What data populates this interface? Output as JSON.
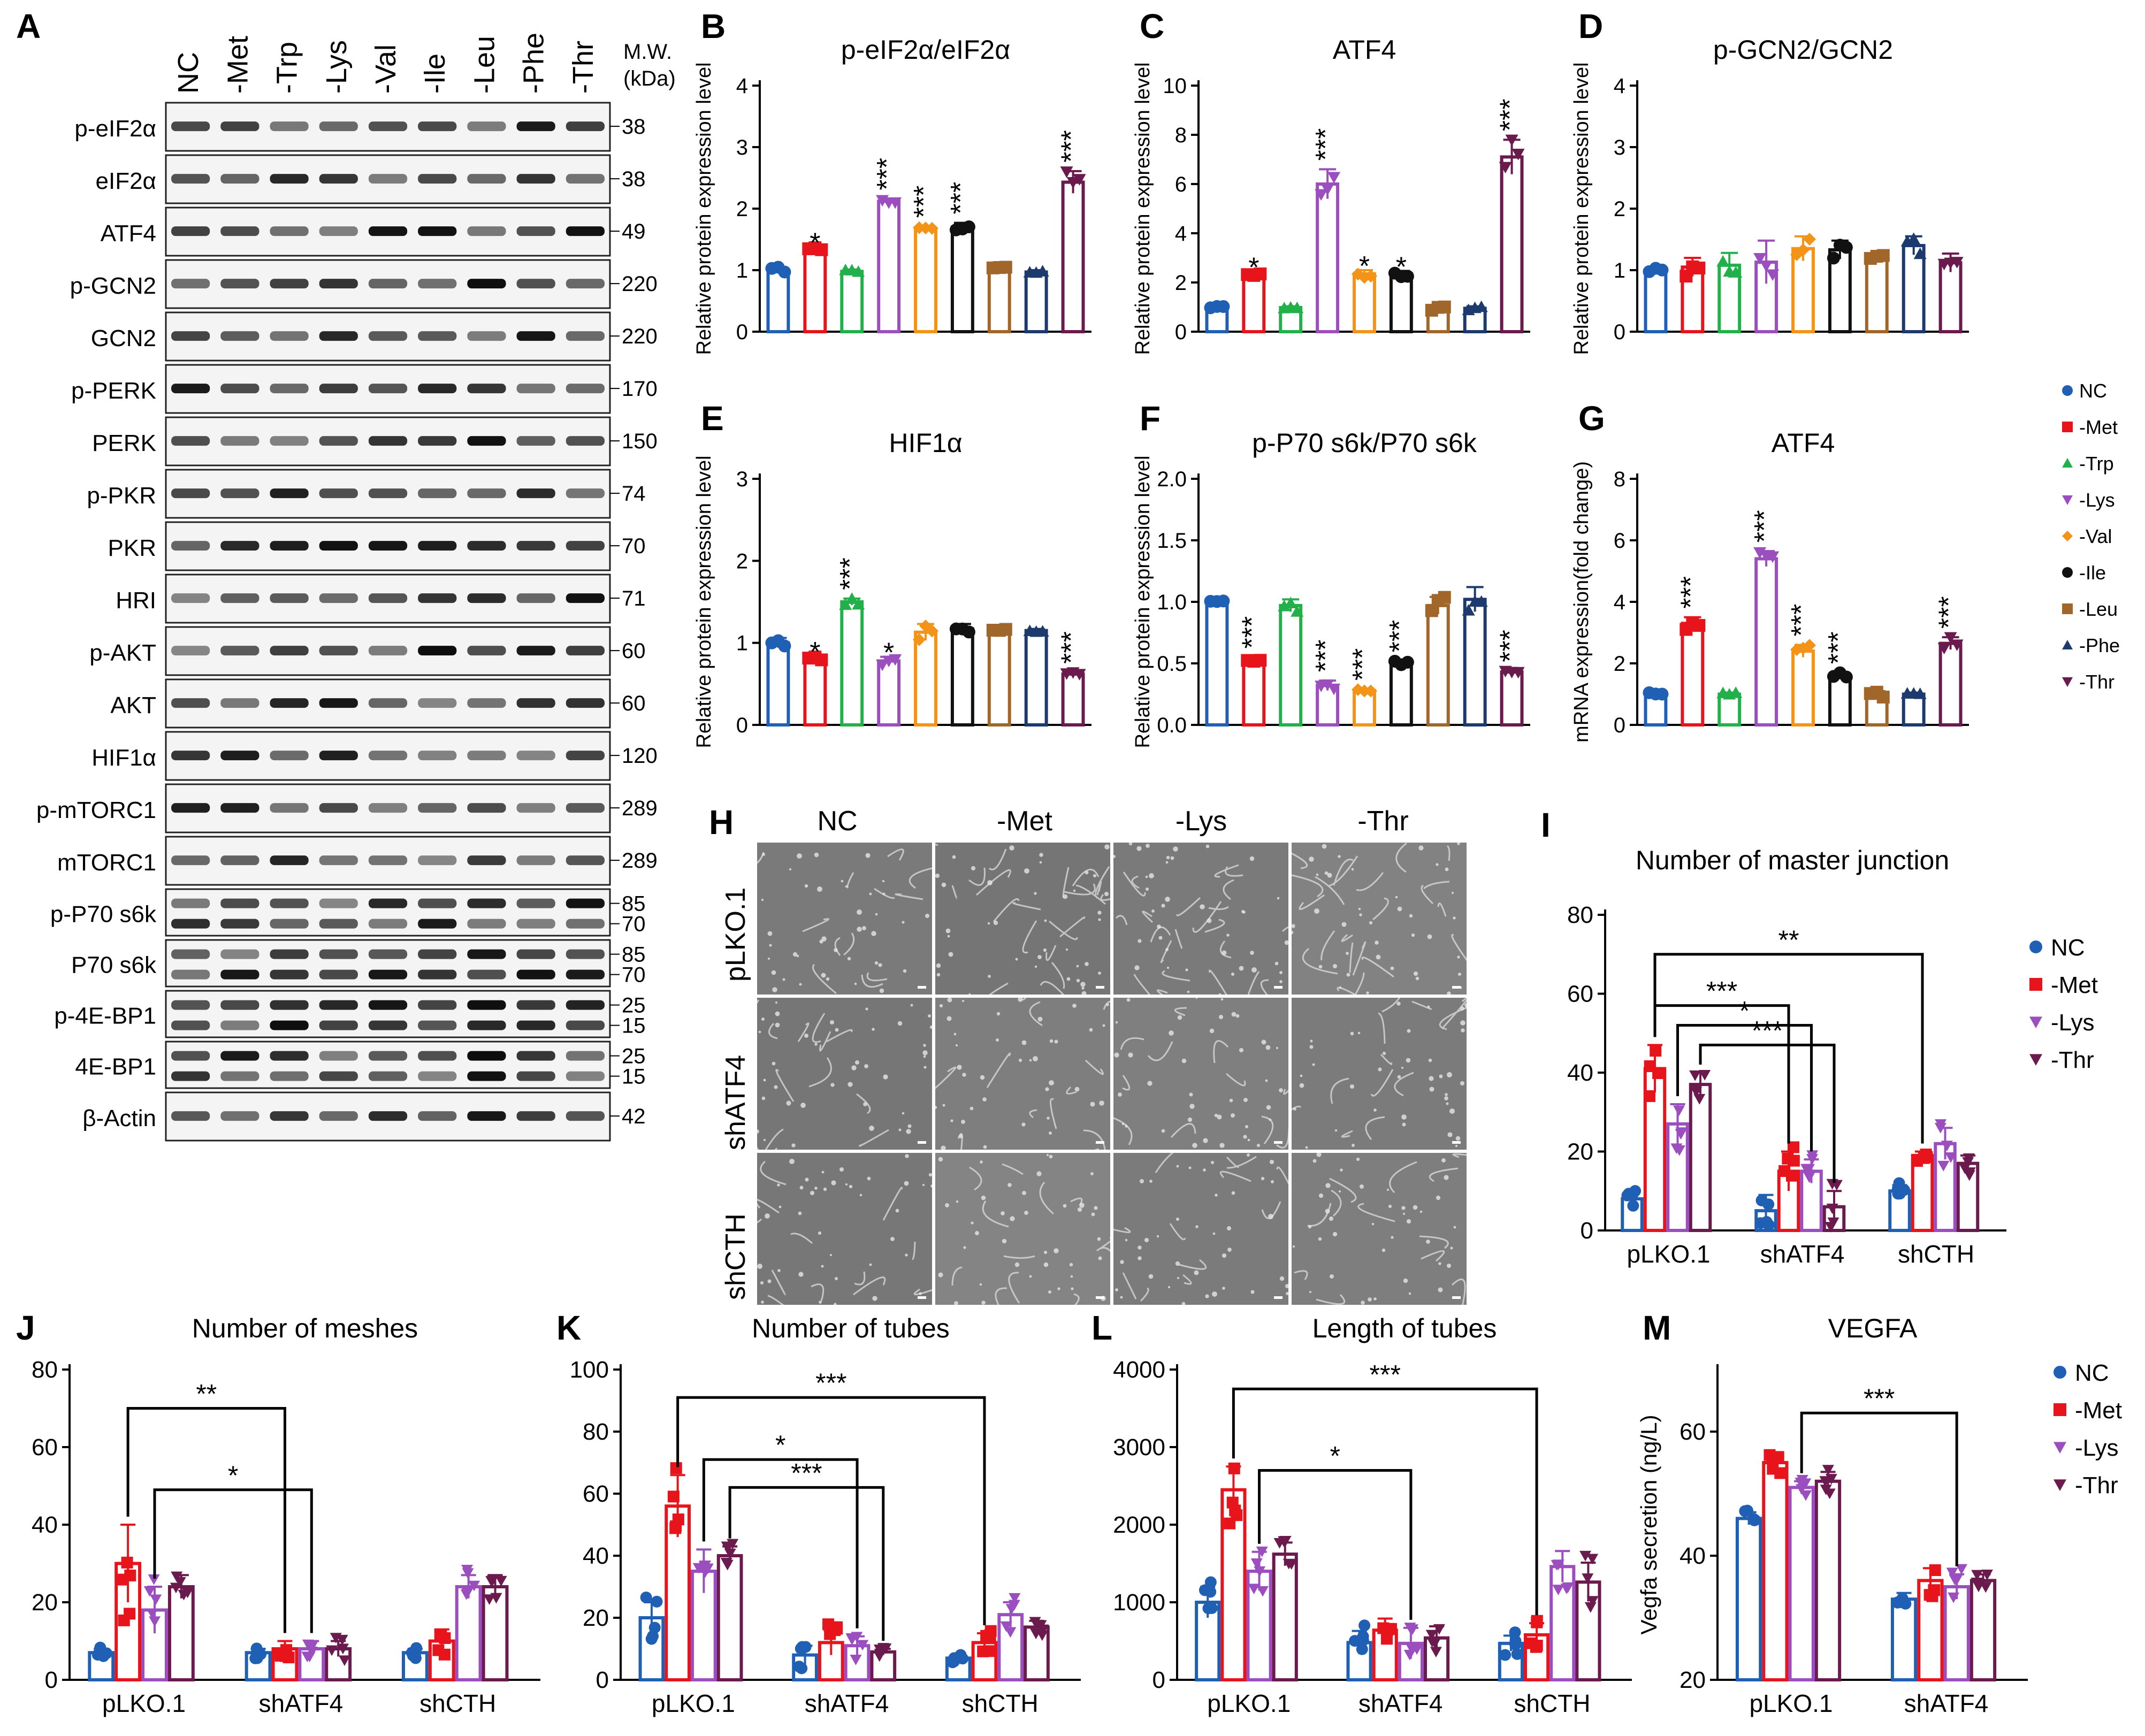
{
  "panels": {
    "A": "A",
    "B": "B",
    "C": "C",
    "D": "D",
    "E": "E",
    "F": "F",
    "G": "G",
    "H": "H",
    "I": "I",
    "J": "J",
    "K": "K",
    "L": "L",
    "M": "M"
  },
  "western_blot": {
    "lanes": [
      "NC",
      "-Met",
      "-Trp",
      "-Lys",
      "-Val",
      "-Ile",
      "-Leu",
      "-Phe",
      "-Thr"
    ],
    "mw_header": [
      "M.W.",
      "(kDa)"
    ],
    "rows": [
      {
        "label": "p-eIF2α",
        "mw": [
          "38"
        ]
      },
      {
        "label": "eIF2α",
        "mw": [
          "38"
        ]
      },
      {
        "label": "ATF4",
        "mw": [
          "49"
        ]
      },
      {
        "label": "p-GCN2",
        "mw": [
          "220"
        ]
      },
      {
        "label": "GCN2",
        "mw": [
          "220"
        ]
      },
      {
        "label": "p-PERK",
        "mw": [
          "170"
        ]
      },
      {
        "label": "PERK",
        "mw": [
          "150"
        ]
      },
      {
        "label": "p-PKR",
        "mw": [
          "74"
        ]
      },
      {
        "label": "PKR",
        "mw": [
          "70"
        ]
      },
      {
        "label": "HRI",
        "mw": [
          "71"
        ]
      },
      {
        "label": "p-AKT",
        "mw": [
          "60"
        ]
      },
      {
        "label": "AKT",
        "mw": [
          "60"
        ]
      },
      {
        "label": "HIF1α",
        "mw": [
          "120"
        ]
      },
      {
        "label": "p-mTORC1",
        "mw": [
          "289"
        ]
      },
      {
        "label": "mTORC1",
        "mw": [
          "289"
        ]
      },
      {
        "label": "p-P70 s6k",
        "mw": [
          "85",
          "70"
        ]
      },
      {
        "label": "P70 s6k",
        "mw": [
          "85",
          "70"
        ]
      },
      {
        "label": "p-4E-BP1",
        "mw": [
          "25",
          "15"
        ]
      },
      {
        "label": "4E-BP1",
        "mw": [
          "25",
          "15"
        ]
      },
      {
        "label": "β-Actin",
        "mw": [
          "42"
        ]
      }
    ]
  },
  "legend_aa": [
    "NC",
    "-Met",
    "-Trp",
    "-Lys",
    "-Val",
    "-Ile",
    "-Leu",
    "-Phe",
    "-Thr"
  ],
  "legend_tube": [
    "NC",
    "-Met",
    "-Lys",
    "-Thr"
  ],
  "colors": {
    "NC": "#1f5fb4",
    "-Met": "#e8141c",
    "-Trp": "#22b04a",
    "-Lys": "#9b4fbf",
    "-Val": "#f39317",
    "-Ile": "#111111",
    "-Leu": "#a0662a",
    "-Phe": "#1d3a6e",
    "-Thr": "#6a1a4c"
  },
  "microscopy": {
    "columns": [
      "NC",
      "-Met",
      "-Lys",
      "-Thr"
    ],
    "rows": [
      "pLKO.1",
      "shATF4",
      "shCTH"
    ]
  },
  "chart_data": [
    {
      "id": "B",
      "type": "bar",
      "title": "p-eIF2α/eIF2α",
      "ylabel": "Relative protein expression level",
      "ylim": [
        0,
        4
      ],
      "yticks": [
        0,
        1,
        2,
        3,
        4
      ],
      "categories": [
        "NC",
        "-Met",
        "-Trp",
        "-Lys",
        "-Val",
        "-Ile",
        "-Leu",
        "-Phe",
        "-Thr"
      ],
      "values": [
        1.0,
        1.33,
        0.98,
        2.12,
        1.68,
        1.7,
        1.03,
        0.97,
        2.43
      ],
      "errors": [
        0.05,
        0.05,
        0.03,
        0.04,
        0.03,
        0.07,
        0.03,
        0.03,
        0.18
      ],
      "sig": [
        "",
        "*",
        "",
        "***",
        "***",
        "***",
        "",
        "",
        "***"
      ]
    },
    {
      "id": "C",
      "type": "bar",
      "title": "ATF4",
      "ylabel": "Relative protein expression level",
      "ylim": [
        0,
        10
      ],
      "yticks": [
        0,
        2,
        4,
        6,
        8,
        10
      ],
      "categories": [
        "NC",
        "-Met",
        "-Trp",
        "-Lys",
        "-Val",
        "-Ile",
        "-Leu",
        "-Phe",
        "-Thr"
      ],
      "values": [
        1.0,
        2.35,
        0.98,
        6.0,
        2.35,
        2.35,
        0.95,
        0.95,
        7.1
      ],
      "errors": [
        0.03,
        0.1,
        0.05,
        0.6,
        0.15,
        0.12,
        0.08,
        0.08,
        0.7
      ],
      "sig": [
        "",
        "*",
        "",
        "***",
        "*",
        "*",
        "",
        "",
        "***"
      ]
    },
    {
      "id": "D",
      "type": "bar",
      "title": "p-GCN2/GCN2",
      "ylabel": "Relative protein expression level",
      "ylim": [
        0,
        4
      ],
      "yticks": [
        0,
        1,
        2,
        3,
        4
      ],
      "categories": [
        "NC",
        "-Met",
        "-Trp",
        "-Lys",
        "-Val",
        "-Ile",
        "-Leu",
        "-Phe",
        "-Thr"
      ],
      "values": [
        1.0,
        1.05,
        1.08,
        1.13,
        1.35,
        1.33,
        1.2,
        1.4,
        1.12
      ],
      "errors": [
        0.05,
        0.15,
        0.2,
        0.35,
        0.2,
        0.15,
        0.05,
        0.15,
        0.15
      ],
      "sig": [
        "",
        "",
        "",
        "",
        "",
        "",
        "",
        "",
        ""
      ]
    },
    {
      "id": "E",
      "type": "bar",
      "title": "HIF1α",
      "ylabel": "Relative protein expression level",
      "ylim": [
        0,
        3
      ],
      "yticks": [
        0,
        1,
        2,
        3
      ],
      "categories": [
        "NC",
        "-Met",
        "-Trp",
        "-Lys",
        "-Val",
        "-Ile",
        "-Leu",
        "-Phe",
        "-Thr"
      ],
      "values": [
        1.0,
        0.8,
        1.5,
        0.78,
        1.13,
        1.17,
        1.13,
        1.15,
        0.62
      ],
      "errors": [
        0.06,
        0.04,
        0.04,
        0.05,
        0.1,
        0.06,
        0.04,
        0.02,
        0.02
      ],
      "sig": [
        "",
        "*",
        "***",
        "*",
        "",
        "",
        "",
        "",
        "***"
      ]
    },
    {
      "id": "F",
      "type": "bar",
      "title": "p-P70 s6k/P70 s6k",
      "ylabel": "Relative protein expression level",
      "ylim": [
        0,
        2.0
      ],
      "yticks": [
        0,
        0.5,
        1.0,
        1.5,
        2.0
      ],
      "categories": [
        "NC",
        "-Met",
        "-Trp",
        "-Lys",
        "-Val",
        "-Ile",
        "-Leu",
        "-Phe",
        "-Thr"
      ],
      "values": [
        1.0,
        0.53,
        0.97,
        0.32,
        0.28,
        0.5,
        0.97,
        1.02,
        0.43
      ],
      "errors": [
        0.01,
        0.02,
        0.05,
        0.04,
        0.01,
        0.02,
        0.07,
        0.1,
        0.01
      ],
      "sig": [
        "",
        "***",
        "",
        "***",
        "***",
        "***",
        "",
        "",
        "***"
      ]
    },
    {
      "id": "G",
      "type": "bar",
      "title": "ATF4",
      "ylabel": "mRNA expression(fold change)",
      "ylim": [
        0,
        8
      ],
      "yticks": [
        0,
        2,
        4,
        6,
        8
      ],
      "categories": [
        "NC",
        "-Met",
        "-Trp",
        "-Lys",
        "-Val",
        "-Ile",
        "-Leu",
        "-Phe",
        "-Thr"
      ],
      "values": [
        1.0,
        3.3,
        1.0,
        5.4,
        2.4,
        1.6,
        1.0,
        1.0,
        2.65
      ],
      "errors": [
        0.05,
        0.2,
        0.05,
        0.25,
        0.2,
        0.1,
        0.1,
        0.05,
        0.2
      ],
      "sig": [
        "",
        "***",
        "",
        "***",
        "***",
        "***",
        "",
        "",
        "***"
      ]
    },
    {
      "id": "I",
      "type": "bar",
      "title": "Number of master junction",
      "ylim": [
        0,
        80
      ],
      "yticks": [
        0,
        20,
        40,
        60,
        80
      ],
      "groups": [
        "pLKO.1",
        "shATF4",
        "shCTH"
      ],
      "series_names": [
        "NC",
        "-Met",
        "-Lys",
        "-Thr"
      ],
      "values": [
        [
          8,
          41,
          27,
          37
        ],
        [
          5,
          15,
          15,
          6
        ],
        [
          10,
          19,
          22,
          17
        ]
      ],
      "errors": [
        [
          1.5,
          6,
          5,
          3
        ],
        [
          4,
          5,
          3,
          4
        ],
        [
          1.5,
          1,
          4,
          2
        ]
      ],
      "brackets": [
        {
          "from": [
            0,
            1
          ],
          "to": [
            2,
            1
          ],
          "level": 70,
          "label": "**"
        },
        {
          "from": [
            0,
            1
          ],
          "to": [
            1,
            1
          ],
          "level": 57,
          "label": "***"
        },
        {
          "from": [
            0,
            2
          ],
          "to": [
            1,
            2
          ],
          "level": 52,
          "label": "*"
        },
        {
          "from": [
            0,
            3
          ],
          "to": [
            1,
            3
          ],
          "level": 47,
          "label": "***"
        }
      ]
    },
    {
      "id": "J",
      "type": "bar",
      "title": "Number of meshes",
      "ylim": [
        0,
        80
      ],
      "yticks": [
        0,
        20,
        40,
        60,
        80
      ],
      "groups": [
        "pLKO.1",
        "shATF4",
        "shCTH"
      ],
      "series_names": [
        "NC",
        "-Met",
        "-Lys",
        "-Thr"
      ],
      "values": [
        [
          7,
          30,
          18,
          24
        ],
        [
          7,
          8,
          8,
          8
        ],
        [
          7,
          10,
          24,
          24
        ]
      ],
      "errors": [
        [
          1,
          10,
          6,
          3
        ],
        [
          1,
          2,
          2,
          2
        ],
        [
          1,
          3,
          3,
          3
        ]
      ],
      "brackets": [
        {
          "from": [
            0,
            1
          ],
          "to": [
            1,
            1
          ],
          "level": 70,
          "label": "**"
        },
        {
          "from": [
            0,
            2
          ],
          "to": [
            1,
            2
          ],
          "level": 49,
          "label": "*"
        }
      ]
    },
    {
      "id": "K",
      "type": "bar",
      "title": "Number of tubes",
      "ylim": [
        0,
        100
      ],
      "yticks": [
        0,
        20,
        40,
        60,
        80,
        100
      ],
      "groups": [
        "pLKO.1",
        "shATF4",
        "shCTH"
      ],
      "series_names": [
        "NC",
        "-Met",
        "-Lys",
        "-Thr"
      ],
      "values": [
        [
          20,
          56,
          35,
          40
        ],
        [
          8,
          12,
          11,
          9
        ],
        [
          7,
          12,
          21,
          17
        ]
      ],
      "errors": [
        [
          5,
          10,
          7,
          3
        ],
        [
          3,
          4,
          3,
          1
        ],
        [
          1,
          3,
          4,
          2
        ]
      ],
      "brackets": [
        {
          "from": [
            0,
            1
          ],
          "to": [
            2,
            1
          ],
          "level": 91,
          "label": "***"
        },
        {
          "from": [
            0,
            2
          ],
          "to": [
            1,
            2
          ],
          "level": 71,
          "label": "*"
        },
        {
          "from": [
            0,
            3
          ],
          "to": [
            1,
            3
          ],
          "level": 62,
          "label": "***"
        }
      ]
    },
    {
      "id": "L",
      "type": "bar",
      "title": "Length of tubes",
      "ylim": [
        0,
        4000
      ],
      "yticks": [
        0,
        1000,
        2000,
        3000,
        4000
      ],
      "groups": [
        "pLKO.1",
        "shATF4",
        "shCTH"
      ],
      "series_names": [
        "NC",
        "-Met",
        "-Lys",
        "-Thr"
      ],
      "values": [
        [
          1000,
          2450,
          1400,
          1620
        ],
        [
          480,
          640,
          470,
          540
        ],
        [
          470,
          580,
          1460,
          1260
        ]
      ],
      "errors": [
        [
          200,
          300,
          250,
          150
        ],
        [
          150,
          150,
          200,
          150
        ],
        [
          100,
          150,
          200,
          250
        ]
      ],
      "brackets": [
        {
          "from": [
            0,
            1
          ],
          "to": [
            2,
            1
          ],
          "level": 3750,
          "label": "***"
        },
        {
          "from": [
            0,
            2
          ],
          "to": [
            1,
            2
          ],
          "level": 2700,
          "label": "*"
        }
      ]
    },
    {
      "id": "M",
      "type": "bar",
      "title": "VEGFA",
      "ylabel": "Vegfa secretion (ng/L)",
      "ylim": [
        20,
        70
      ],
      "yticks": [
        20,
        40,
        60
      ],
      "groups": [
        "pLKO.1",
        "shATF4"
      ],
      "series_names": [
        "NC",
        "-Met",
        "-Lys",
        "-Thr"
      ],
      "values": [
        [
          46,
          55,
          51,
          52
        ],
        [
          33,
          36,
          35,
          36
        ]
      ],
      "errors": [
        [
          1,
          1.5,
          1,
          1.5
        ],
        [
          1,
          2,
          2,
          1
        ]
      ],
      "brackets": [
        {
          "from": [
            0,
            2
          ],
          "to": [
            1,
            2
          ],
          "level": 63,
          "label": "***"
        }
      ]
    }
  ]
}
